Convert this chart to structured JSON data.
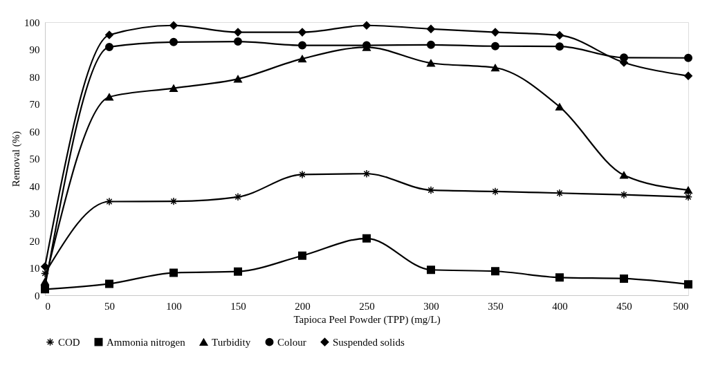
{
  "chart_data": {
    "type": "line",
    "xlabel": "Tapioca Peel Powder (TPP) (mg/L)",
    "ylabel": "Removal (%)",
    "x": [
      0,
      50,
      100,
      150,
      200,
      250,
      300,
      350,
      400,
      450,
      500
    ],
    "xlim": [
      0,
      500
    ],
    "xticks": [
      0,
      50,
      100,
      150,
      200,
      250,
      300,
      350,
      400,
      450,
      500
    ],
    "ylim": [
      0,
      100
    ],
    "yticks": [
      0,
      10,
      20,
      30,
      40,
      50,
      60,
      70,
      80,
      90,
      100
    ],
    "grid": false,
    "legend": "bottom",
    "line_style": "solid",
    "series": [
      {
        "name": "COD",
        "color": "#000000",
        "marker": "cross",
        "values": [
          8,
          34.3,
          34.4,
          36,
          44.2,
          44.5,
          38.5,
          38,
          37.4,
          36.8,
          36
        ]
      },
      {
        "name": "Ammonia nitrogen",
        "color": "#000000",
        "marker": "square",
        "values": [
          2.2,
          4.2,
          8.2,
          8.7,
          14.5,
          20.8,
          9.3,
          8.8,
          6.5,
          6.1,
          4
        ]
      },
      {
        "name": "Turbidity",
        "color": "#000000",
        "marker": "triangle",
        "values": [
          5,
          72.6,
          75.8,
          79.2,
          86.6,
          90.8,
          85,
          83.3,
          69,
          44,
          38.5
        ]
      },
      {
        "name": "Colour",
        "color": "#000000",
        "marker": "circle",
        "values": [
          3,
          90.9,
          92.7,
          92.9,
          91.5,
          91.5,
          91.7,
          91.2,
          91.1,
          87,
          86.9
        ]
      },
      {
        "name": "Suspended solids",
        "color": "#000000",
        "marker": "diamond",
        "values": [
          10.5,
          95.3,
          98.8,
          96.3,
          96.3,
          98.8,
          97.5,
          96.3,
          95.2,
          85.2,
          80.3
        ]
      }
    ]
  }
}
